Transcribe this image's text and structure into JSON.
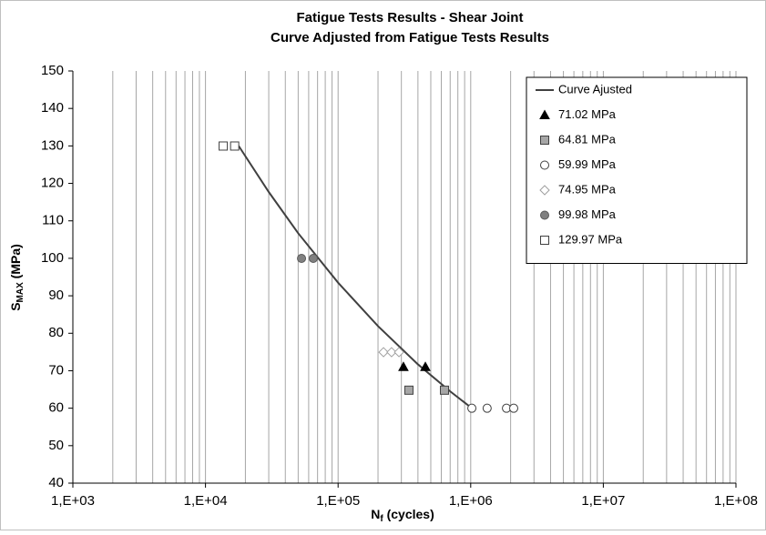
{
  "chart_data": {
    "type": "scatter",
    "title": [
      "Fatigue Tests Results -  Shear Joint",
      "Curve Adjusted  from Fatigue Tests Results"
    ],
    "xlabel": {
      "main": "N",
      "sub": "f",
      "rest": " (cycles)"
    },
    "ylabel": {
      "main": "S",
      "sub": "MAX",
      "rest": " (MPa)"
    },
    "xscale": "log",
    "xlim": [
      1000,
      100000000
    ],
    "xticks": [
      {
        "value": 1000,
        "label": "1,E+03"
      },
      {
        "value": 10000,
        "label": "1,E+04"
      },
      {
        "value": 100000,
        "label": "1,E+05"
      },
      {
        "value": 1000000,
        "label": "1,E+06"
      },
      {
        "value": 10000000,
        "label": "1,E+07"
      },
      {
        "value": 100000000,
        "label": "1,E+08"
      }
    ],
    "ylim": [
      40,
      150
    ],
    "yticks": [
      40,
      50,
      60,
      70,
      80,
      90,
      100,
      110,
      120,
      130,
      140,
      150
    ],
    "grid": "x-minor",
    "legend": "upper right",
    "series": [
      {
        "name": "Curve Ajusted",
        "marker": "line",
        "color": "#404040",
        "x": [
          17800,
          30000,
          50000,
          100000,
          200000,
          400000,
          700000,
          1020000
        ],
        "values": [
          130,
          117.7,
          106.7,
          93.5,
          81.9,
          71.7,
          64.5,
          60
        ]
      },
      {
        "name": "71.02 MPa",
        "marker": "triangle",
        "color": "#000000",
        "stroke": "#000000",
        "x": [
          311000,
          455000
        ],
        "values": [
          71.02,
          71.02
        ]
      },
      {
        "name": "64.81 MPa",
        "marker": "square",
        "color": "#a6a6a6",
        "stroke": "#404040",
        "x": [
          342000,
          634000
        ],
        "values": [
          64.81,
          64.81
        ]
      },
      {
        "name": "59.99 MPa",
        "marker": "circle",
        "color": "#ffffff",
        "stroke": "#404040",
        "x": [
          1020000,
          1330000,
          1860000,
          2110000
        ],
        "values": [
          59.99,
          59.99,
          59.99,
          59.99
        ]
      },
      {
        "name": "74.95 MPa",
        "marker": "diamond",
        "color": "#ffffff",
        "stroke": "#a0a0a0",
        "x": [
          220000,
          253000,
          288000
        ],
        "values": [
          74.95,
          74.95,
          74.95
        ]
      },
      {
        "name": "99.98 MPa",
        "marker": "circle",
        "color": "#808080",
        "stroke": "#595959",
        "x": [
          53000,
          65000
        ],
        "values": [
          99.98,
          99.98
        ]
      },
      {
        "name": "129.97 MPa",
        "marker": "square",
        "color": "#ffffff",
        "stroke": "#404040",
        "x": [
          13600,
          16600
        ],
        "values": [
          129.97,
          129.97
        ]
      }
    ]
  }
}
